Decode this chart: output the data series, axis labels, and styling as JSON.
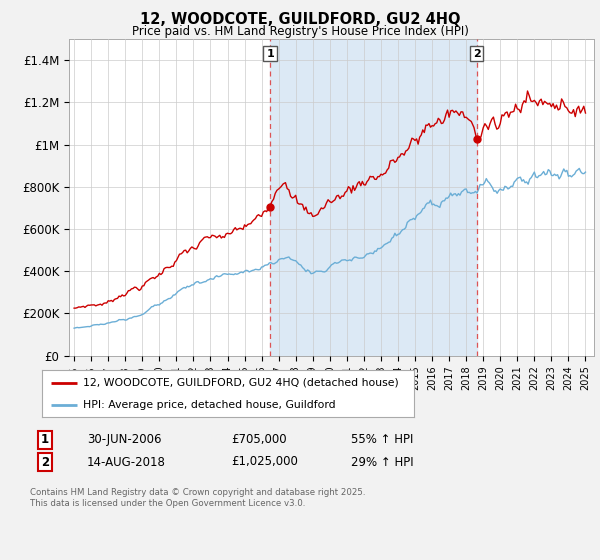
{
  "title": "12, WOODCOTE, GUILDFORD, GU2 4HQ",
  "subtitle": "Price paid vs. HM Land Registry's House Price Index (HPI)",
  "ylim": [
    0,
    1500000
  ],
  "yticks": [
    0,
    200000,
    400000,
    600000,
    800000,
    1000000,
    1200000,
    1400000
  ],
  "ytick_labels": [
    "£0",
    "£200K",
    "£400K",
    "£600K",
    "£800K",
    "£1M",
    "£1.2M",
    "£1.4M"
  ],
  "x_start_year": 1995,
  "x_end_year": 2025,
  "legend_line1": "12, WOODCOTE, GUILDFORD, GU2 4HQ (detached house)",
  "legend_line2": "HPI: Average price, detached house, Guildford",
  "marker1_date": 2006.5,
  "marker1_val": 705000,
  "marker1_label": "1",
  "marker1_text": "30-JUN-2006",
  "marker1_price": "£705,000",
  "marker1_hpi": "55% ↑ HPI",
  "marker2_date": 2018.62,
  "marker2_val": 1025000,
  "marker2_label": "2",
  "marker2_text": "14-AUG-2018",
  "marker2_price": "£1,025,000",
  "marker2_hpi": "29% ↑ HPI",
  "footnote": "Contains HM Land Registry data © Crown copyright and database right 2025.\nThis data is licensed under the Open Government Licence v3.0.",
  "red_line_color": "#cc0000",
  "blue_line_color": "#6baed6",
  "dashed_line_color": "#dd4444",
  "shade_color": "#dce9f5",
  "background_color": "#f2f2f2",
  "plot_bg_color": "#ffffff",
  "grid_color": "#cccccc",
  "legend_border_color": "#aaaaaa"
}
